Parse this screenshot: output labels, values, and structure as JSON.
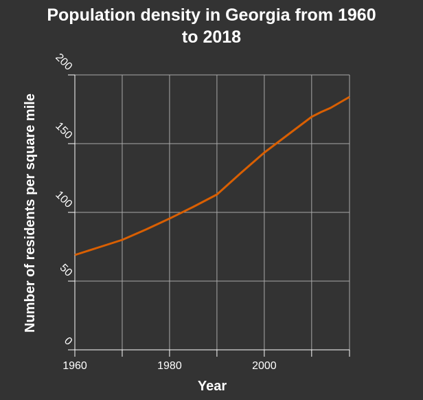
{
  "chart_data": {
    "type": "line",
    "title_lines": [
      "Population density in Georgia from 1960",
      "to 2018"
    ],
    "xlabel": "Year",
    "ylabel": "Number of residents per square mile",
    "xlim": [
      1960,
      2018
    ],
    "ylim": [
      0,
      200
    ],
    "x_ticks": [
      1960,
      1970,
      1980,
      1990,
      2000,
      2010
    ],
    "x_tick_labels": [
      "1960",
      "",
      "1980",
      "",
      "2000",
      ""
    ],
    "y_ticks": [
      0,
      50,
      100,
      150,
      200
    ],
    "y_tick_labels": [
      "0",
      "50",
      "100",
      "150",
      "200"
    ],
    "grid": true,
    "line_color": "#d95f02",
    "series": [
      {
        "x": [
          1960,
          1965,
          1970,
          1975,
          1980,
          1985,
          1990,
          1995,
          2000,
          2005,
          2010,
          2012,
          2014,
          2016,
          2018
        ],
        "values": [
          69,
          74.5,
          80,
          87.5,
          95.5,
          104,
          113,
          128.5,
          143.5,
          156.5,
          169.5,
          173,
          176,
          180,
          184
        ]
      }
    ]
  }
}
